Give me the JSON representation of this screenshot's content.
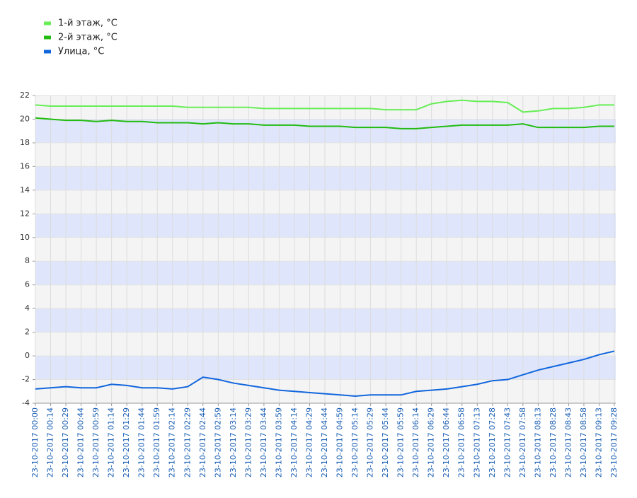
{
  "chart_data": {
    "type": "line",
    "categories": [
      "23-10-2017 00:00",
      "23-10-2017 00:14",
      "23-10-2017 00:29",
      "23-10-2017 00:44",
      "23-10-2017 00:59",
      "23-10-2017 01:14",
      "23-10-2017 01:29",
      "23-10-2017 01:44",
      "23-10-2017 01:59",
      "23-10-2017 02:14",
      "23-10-2017 02:29",
      "23-10-2017 02:44",
      "23-10-2017 02:59",
      "23-10-2017 03:14",
      "23-10-2017 03:29",
      "23-10-2017 03:44",
      "23-10-2017 03:59",
      "23-10-2017 04:14",
      "23-10-2017 04:29",
      "23-10-2017 04:44",
      "23-10-2017 04:59",
      "23-10-2017 05:14",
      "23-10-2017 05:29",
      "23-10-2017 05:44",
      "23-10-2017 05:59",
      "23-10-2017 06:14",
      "23-10-2017 06:29",
      "23-10-2017 06:44",
      "23-10-2017 06:58",
      "23-10-2017 07:13",
      "23-10-2017 07:28",
      "23-10-2017 07:43",
      "23-10-2017 07:58",
      "23-10-2017 08:13",
      "23-10-2017 08:28",
      "23-10-2017 08:43",
      "23-10-2017 08:58",
      "23-10-2017 09:13",
      "23-10-2017 09:28"
    ],
    "series": [
      {
        "name": "1-й этаж, °C",
        "color": "#66ee55",
        "values": [
          21.2,
          21.1,
          21.1,
          21.1,
          21.1,
          21.1,
          21.1,
          21.1,
          21.1,
          21.1,
          21.0,
          21.0,
          21.0,
          21.0,
          21.0,
          20.9,
          20.9,
          20.9,
          20.9,
          20.9,
          20.9,
          20.9,
          20.9,
          20.8,
          20.8,
          20.8,
          21.3,
          21.5,
          21.6,
          21.5,
          21.5,
          21.4,
          20.6,
          20.7,
          20.9,
          20.9,
          21.0,
          21.2,
          21.2
        ]
      },
      {
        "name": "2-й этаж, °C",
        "color": "#22bb11",
        "values": [
          20.1,
          20.0,
          19.9,
          19.9,
          19.8,
          19.9,
          19.8,
          19.8,
          19.7,
          19.7,
          19.7,
          19.6,
          19.7,
          19.6,
          19.6,
          19.5,
          19.5,
          19.5,
          19.4,
          19.4,
          19.4,
          19.3,
          19.3,
          19.3,
          19.2,
          19.2,
          19.3,
          19.4,
          19.5,
          19.5,
          19.5,
          19.5,
          19.6,
          19.3,
          19.3,
          19.3,
          19.3,
          19.4,
          19.4
        ]
      },
      {
        "name": "Улица, °C",
        "color": "#1166dd",
        "values": [
          -2.8,
          -2.7,
          -2.6,
          -2.7,
          -2.7,
          -2.4,
          -2.5,
          -2.7,
          -2.7,
          -2.8,
          -2.6,
          -1.8,
          -2.0,
          -2.3,
          -2.5,
          -2.7,
          -2.9,
          -3.0,
          -3.1,
          -3.2,
          -3.3,
          -3.4,
          -3.3,
          -3.3,
          -3.3,
          -3.0,
          -2.9,
          -2.8,
          -2.6,
          -2.4,
          -2.1,
          -2.0,
          -1.6,
          -1.2,
          -0.9,
          -0.6,
          -0.3,
          0.1,
          0.4
        ]
      }
    ],
    "ylim": [
      -4,
      22
    ],
    "yticks": [
      -4,
      -2,
      0,
      2,
      4,
      6,
      8,
      10,
      12,
      14,
      16,
      18,
      20,
      22
    ],
    "grid": true,
    "band_colors": [
      "#f4f4f4",
      "#dfe6fb"
    ],
    "legend": "top-left"
  }
}
